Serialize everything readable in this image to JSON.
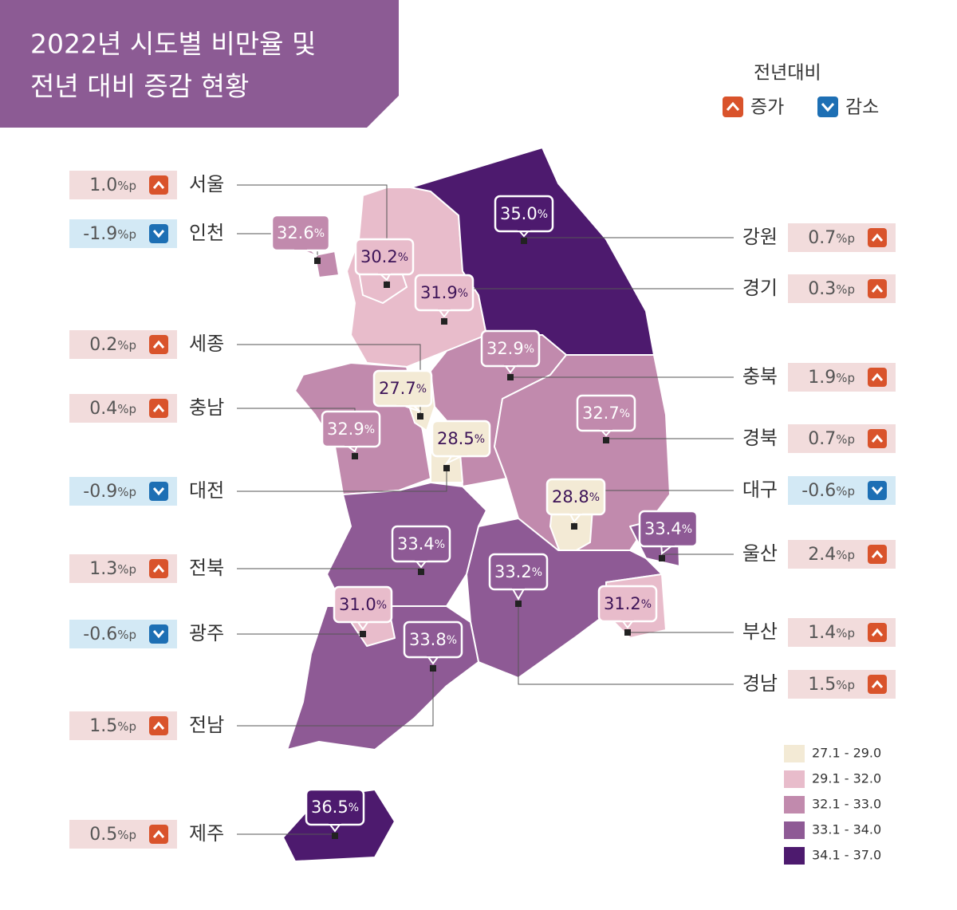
{
  "header": {
    "title": [
      "2022년 시도별 비만율 및",
      "전년 대비 증감 현황"
    ]
  },
  "legend": {
    "title": "전년대비",
    "increase": "증가",
    "decrease": "감소"
  },
  "regions": [
    {
      "name": "서울",
      "rate": "30.2",
      "rate_unit": "%",
      "change": "1.0",
      "change_unit": "%p",
      "color": "#e8bccb"
    },
    {
      "name": "인천",
      "rate": "32.6",
      "rate_unit": "%",
      "change": "-1.9",
      "change_unit": "%p",
      "color": "#c18aad"
    },
    {
      "name": "세종",
      "rate": "27.7",
      "rate_unit": "%",
      "change": "0.2",
      "change_unit": "%p",
      "color": "#f3ead5"
    },
    {
      "name": "충남",
      "rate": "32.9",
      "rate_unit": "%",
      "change": "0.4",
      "change_unit": "%p",
      "color": "#c18aad"
    },
    {
      "name": "대전",
      "rate": "28.5",
      "rate_unit": "%",
      "change": "-0.9",
      "change_unit": "%p",
      "color": "#f3ead5"
    },
    {
      "name": "전북",
      "rate": "33.4",
      "rate_unit": "%",
      "change": "1.3",
      "change_unit": "%p",
      "color": "#8e5a95"
    },
    {
      "name": "광주",
      "rate": "31.0",
      "rate_unit": "%",
      "change": "-0.6",
      "change_unit": "%p",
      "color": "#e8bccb"
    },
    {
      "name": "전남",
      "rate": "33.8",
      "rate_unit": "%",
      "change": "1.5",
      "change_unit": "%p",
      "color": "#8e5a95"
    },
    {
      "name": "제주",
      "rate": "36.5",
      "rate_unit": "%",
      "change": "0.5",
      "change_unit": "%p",
      "color": "#4d1a6e"
    },
    {
      "name": "강원",
      "rate": "35.0",
      "rate_unit": "%",
      "change": "0.7",
      "change_unit": "%p",
      "color": "#4d1a6e"
    },
    {
      "name": "경기",
      "rate": "31.9",
      "rate_unit": "%",
      "change": "0.3",
      "change_unit": "%p",
      "color": "#e8bccb"
    },
    {
      "name": "충북",
      "rate": "32.9",
      "rate_unit": "%",
      "change": "1.9",
      "change_unit": "%p",
      "color": "#c18aad"
    },
    {
      "name": "경북",
      "rate": "32.7",
      "rate_unit": "%",
      "change": "0.7",
      "change_unit": "%p",
      "color": "#c18aad"
    },
    {
      "name": "대구",
      "rate": "28.8",
      "rate_unit": "%",
      "change": "-0.6",
      "change_unit": "%p",
      "color": "#f3ead5"
    },
    {
      "name": "울산",
      "rate": "33.4",
      "rate_unit": "%",
      "change": "2.4",
      "change_unit": "%p",
      "color": "#8e5a95"
    },
    {
      "name": "부산",
      "rate": "31.2",
      "rate_unit": "%",
      "change": "1.4",
      "change_unit": "%p",
      "color": "#e8bccb"
    },
    {
      "name": "경남",
      "rate": "33.2",
      "rate_unit": "%",
      "change": "1.5",
      "change_unit": "%p",
      "color": "#8e5a95"
    }
  ],
  "bins": [
    {
      "label": "27.1 -  29.0",
      "color": "#f3ead5"
    },
    {
      "label": "29.1 -  32.0",
      "color": "#e8bccb"
    },
    {
      "label": "32.1 -  33.0",
      "color": "#c18aad"
    },
    {
      "label": "33.1 -  34.0",
      "color": "#8e5a95"
    },
    {
      "label": "34.1 -  37.0",
      "color": "#4d1a6e"
    }
  ]
}
